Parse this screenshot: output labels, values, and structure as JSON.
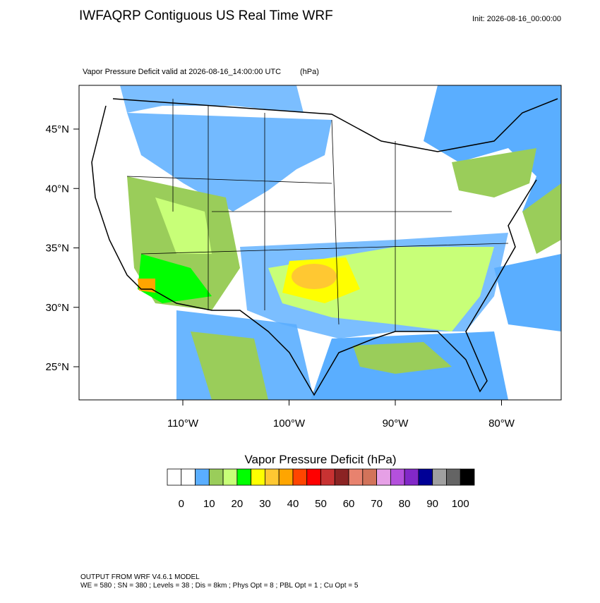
{
  "header": {
    "title": "IWFAQRP Contiguous US Real Time WRF",
    "init": "Init: 2026-08-16_00:00:00",
    "subtitle": "Vapor Pressure Deficit valid at 2026-08-16_14:00:00 UTC",
    "units": "(hPa)"
  },
  "map": {
    "xticks": [
      {
        "value": -110,
        "label": "110°W"
      },
      {
        "value": -100,
        "label": "100°W"
      },
      {
        "value": -90,
        "label": "90°W"
      },
      {
        "value": -80,
        "label": "80°W"
      }
    ],
    "yticks": [
      {
        "value": 45,
        "label": "45°N"
      },
      {
        "value": 40,
        "label": "40°N"
      },
      {
        "value": 35,
        "label": "35°N"
      },
      {
        "value": 30,
        "label": "30°N"
      },
      {
        "value": 25,
        "label": "25°N"
      }
    ]
  },
  "colorbar": {
    "title": "Vapor Pressure Deficit  (hPa)",
    "colors": [
      "#ffffff",
      "#ffffff",
      "#5aaeff",
      "#9acd5a",
      "#c8ff78",
      "#00ff00",
      "#ffff00",
      "#ffc832",
      "#ffa500",
      "#ff4500",
      "#ff0000",
      "#c83232",
      "#8b2323",
      "#e8826e",
      "#d2735a",
      "#e6a0e6",
      "#b450dc",
      "#8228c8",
      "#000096",
      "#a0a0a0",
      "#646464",
      "#000000"
    ],
    "ticks": [
      0,
      10,
      20,
      30,
      40,
      50,
      60,
      70,
      80,
      90,
      100
    ]
  },
  "footer": {
    "line1": "OUTPUT FROM WRF V4.6.1 MODEL",
    "line2": "WE = 580 ; SN = 380 ; Levels = 38 ; Dis = 8km ; Phys Opt = 8 ; PBL Opt = 1 ; Cu Opt = 5"
  }
}
